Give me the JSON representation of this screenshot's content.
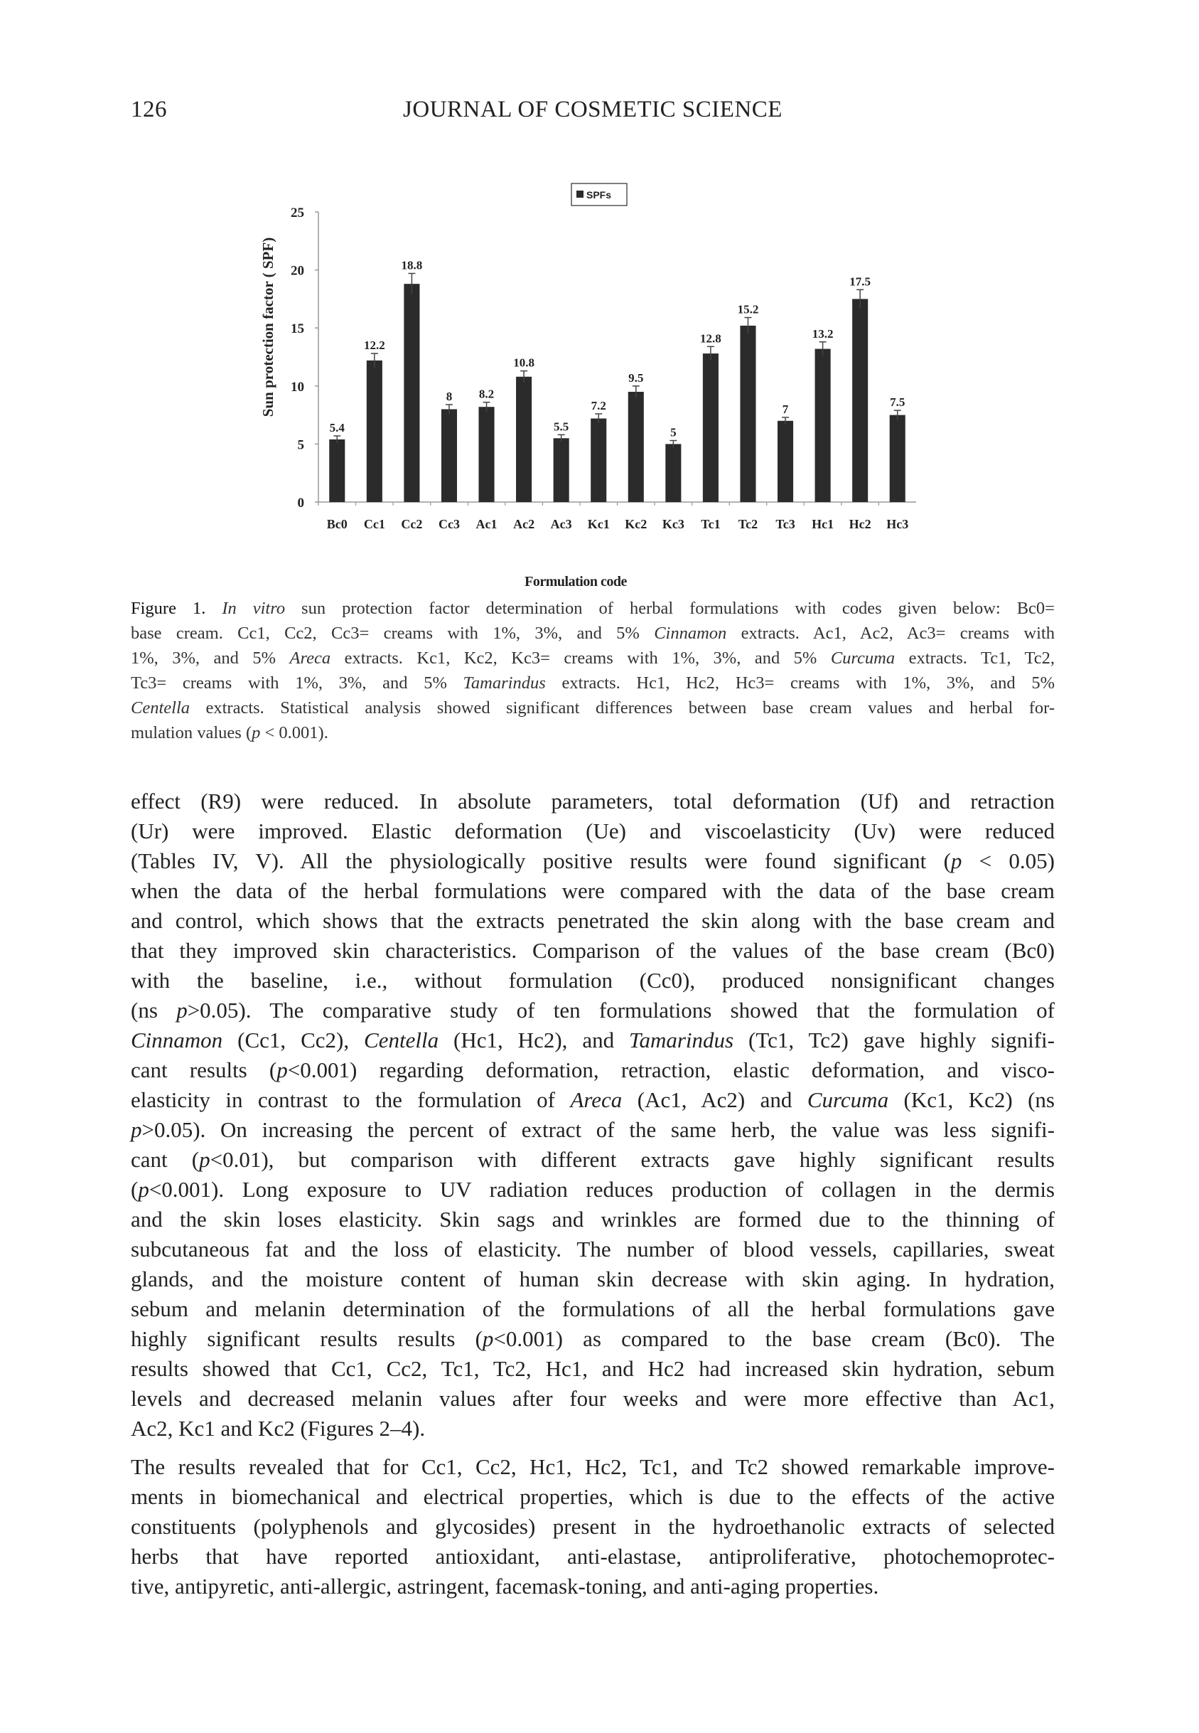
{
  "header": {
    "page_number": "126",
    "journal": "JOURNAL OF COSMETIC SCIENCE"
  },
  "chart_data": {
    "type": "bar",
    "title": "",
    "legend": {
      "entries": [
        "SPFs"
      ],
      "placement": "top-center"
    },
    "xlabel": "Formulation code",
    "ylabel": "Sun protection factor ( SPF)",
    "ylim": [
      0,
      25
    ],
    "yticks": [
      0,
      5,
      10,
      15,
      20,
      25
    ],
    "grid": false,
    "bar_color": "#2b2b2b",
    "categories": [
      "Bc0",
      "Cc1",
      "Cc2",
      "Cc3",
      "Ac1",
      "Ac2",
      "Ac3",
      "Kc1",
      "Kc2",
      "Kc3",
      "Tc1",
      "Tc2",
      "Tc3",
      "Hc1",
      "Hc2",
      "Hc3"
    ],
    "series": [
      {
        "name": "SPFs",
        "values": [
          5.4,
          12.2,
          18.8,
          8,
          8.2,
          10.8,
          5.5,
          7.2,
          9.5,
          5,
          12.8,
          15.2,
          7,
          13.2,
          17.5,
          7.5
        ],
        "error": [
          0.3,
          0.6,
          0.9,
          0.4,
          0.4,
          0.5,
          0.3,
          0.4,
          0.5,
          0.3,
          0.6,
          0.7,
          0.3,
          0.6,
          0.8,
          0.4
        ]
      }
    ],
    "data_labels": [
      "5.4",
      "12.2",
      "18.8",
      "8",
      "8.2",
      "10.8",
      "5.5",
      "7.2",
      "9.5",
      "5",
      "12.8",
      "15.2",
      "7",
      "13.2",
      "17.5",
      "7.5"
    ]
  },
  "caption": {
    "lines": [
      [
        {
          "b": "Figure 1.  "
        },
        {
          "i": "In vitro"
        },
        " sun protection factor determination of herbal formulations with codes given below: Bc0="
      ],
      [
        "base cream. Cc1, Cc2, Cc3= creams with 1%, 3%, and 5% ",
        {
          "i": "Cinnamon"
        },
        " extracts. Ac1, Ac2, Ac3= creams with"
      ],
      [
        "1%, 3%, and 5% ",
        {
          "i": "Areca"
        },
        " extracts. Kc1, Kc2, Kc3= creams with 1%, 3%, and 5% ",
        {
          "i": "Curcuma"
        },
        " extracts. Tc1, Tc2,"
      ],
      [
        "Tc3= creams with 1%, 3%, and 5% ",
        {
          "i": "Tamarindus"
        },
        " extracts. Hc1, Hc2, Hc3= creams with 1%, 3%, and 5%"
      ],
      [
        {
          "i": "Centella"
        },
        " extracts. Statistical analysis showed significant differences between base cream values and herbal for-"
      ],
      [
        "mulation values (",
        {
          "i": "p"
        },
        " < 0.001)."
      ]
    ]
  },
  "paragraphs": [
    {
      "lines": [
        [
          "effect (R9) were reduced. In absolute parameters, total deformation (Uf) and retraction"
        ],
        [
          "(Ur) were improved. Elastic deformation (Ue) and viscoelasticity (Uv) were reduced"
        ],
        [
          "(Tables IV, V). All the physiologically positive results were found significant (",
          {
            "i": "p"
          },
          " < 0.05)"
        ],
        [
          "when the data of the herbal formulations were compared with the data of the base cream"
        ],
        [
          "and control, which shows that the extracts penetrated the skin along with the base cream and"
        ],
        [
          "that they improved skin characteristics. Comparison of the values of the base cream (Bc0)"
        ],
        [
          "with the baseline, i.e., without formulation (Cc0), produced nonsignificant changes"
        ],
        [
          "(ns ",
          {
            "i": "p"
          },
          ">0.05). The comparative study of ten formulations showed that the formulation of"
        ],
        [
          {
            "i": "Cinnamon"
          },
          " (Cc1, Cc2), ",
          {
            "i": "Centella"
          },
          " (Hc1, Hc2), and ",
          {
            "i": "Tamarindus"
          },
          " (Tc1, Tc2) gave highly signifi-"
        ],
        [
          "cant results (",
          {
            "i": "p"
          },
          "<0.001) regarding deformation, retraction, elastic deformation, and visco-"
        ],
        [
          "elasticity in contrast to the formulation of ",
          {
            "i": "Areca"
          },
          " (Ac1, Ac2) and ",
          {
            "i": "Curcuma"
          },
          " (Kc1, Kc2) (ns"
        ],
        [
          {
            "i": "p"
          },
          ">0.05). On increasing the percent of extract of the same herb, the value was less signifi-"
        ],
        [
          "cant (",
          {
            "i": "p"
          },
          "<0.01), but comparison with different extracts gave highly significant results"
        ],
        [
          "(",
          {
            "i": "p"
          },
          "<0.001). Long exposure to UV radiation reduces production of collagen in the dermis"
        ],
        [
          "and the skin loses elasticity. Skin sags and wrinkles are formed due to the thinning of"
        ],
        [
          "subcutaneous fat and the loss of elasticity. The number of blood vessels, capillaries, sweat"
        ],
        [
          "glands, and the moisture content of human skin decrease with skin aging. In hydration,"
        ],
        [
          "sebum and melanin determination of the formulations of all the herbal formulations gave"
        ],
        [
          "highly significant results results (",
          {
            "i": "p"
          },
          "<0.001) as compared to the base cream (Bc0). The"
        ],
        [
          "results showed that Cc1, Cc2, Tc1, Tc2, Hc1, and Hc2 had increased skin hydration, sebum"
        ],
        [
          "levels and decreased melanin values after four weeks and were more effective than Ac1,"
        ],
        [
          "Ac2, Kc1 and Kc2 (Figures 2–4)."
        ]
      ]
    },
    {
      "lines": [
        [
          "The results revealed that for Cc1, Cc2, Hc1, Hc2, Tc1, and Tc2 showed remarkable improve-"
        ],
        [
          "ments in biomechanical and electrical properties, which is due to the effects of the active"
        ],
        [
          "constituents (polyphenols and glycosides) present in the hydroethanolic extracts of selected"
        ],
        [
          "herbs that have reported antioxidant, anti-elastase, antiproliferative, photochemoprotec-"
        ],
        [
          "tive, antipyretic, anti-allergic, astringent, facemask-toning, and anti-aging properties."
        ]
      ]
    }
  ]
}
